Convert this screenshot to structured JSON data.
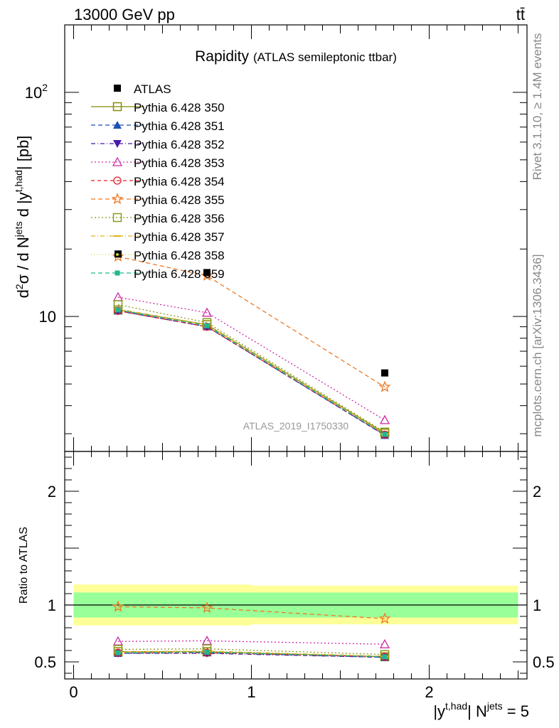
{
  "header": {
    "energy_label": "13000 GeV pp",
    "process_label": "tt̄"
  },
  "side_labels": {
    "rivet": "Rivet 3.1.10, ≥ 1.4M events",
    "mcplots": "mcplots.cern.ch [arXiv:1306.3436]"
  },
  "analysis_id": "ATLAS_2019_I1750330",
  "chart_data": [
    {
      "type": "line",
      "panel": "main",
      "title": "Rapidity",
      "subtitle": "(ATLAS semileptonic ttbar)",
      "ylabel": "d²σ / d N^jets d |y^t,had| [pb]",
      "yscale": "log",
      "ylim": [
        2.5,
        200
      ],
      "xlim": [
        -0.05,
        2.55
      ],
      "grid": false,
      "legend_position": "top-left",
      "ytick_labels": [
        "10",
        "10²"
      ],
      "x": [
        0.25,
        0.75,
        1.75
      ],
      "data": {
        "name": "ATLAS",
        "values": [
          19.0,
          15.7,
          5.6
        ],
        "band_edges": [
          0,
          0.5,
          1.0,
          2.5
        ],
        "stat_band": [
          0.11,
          0.11,
          0.11
        ],
        "total_band": [
          0.18,
          0.18,
          0.17
        ]
      },
      "series": [
        {
          "name": "Pythia 6.428 350",
          "color": "#888a00",
          "dash": "",
          "marker": "square-open",
          "values": [
            10.7,
            9.2,
            3.02
          ]
        },
        {
          "name": "Pythia 6.428 351",
          "color": "#1f4fb4",
          "dash": "6,4",
          "marker": "triangle-up",
          "values": [
            10.6,
            9.0,
            2.95
          ]
        },
        {
          "name": "Pythia 6.428 352",
          "color": "#4a1aa8",
          "dash": "6,3,1,3",
          "marker": "triangle-down",
          "values": [
            10.6,
            9.0,
            2.96
          ]
        },
        {
          "name": "Pythia 6.428 353",
          "color": "#cc2aa6",
          "dash": "2,3",
          "marker": "triangle-open",
          "values": [
            12.2,
            10.4,
            3.45
          ]
        },
        {
          "name": "Pythia 6.428 354",
          "color": "#e0202a",
          "dash": "5,4",
          "marker": "circle-open",
          "values": [
            10.6,
            9.0,
            2.97
          ]
        },
        {
          "name": "Pythia 6.428 355",
          "color": "#f07820",
          "dash": "6,4",
          "marker": "star-open",
          "values": [
            18.5,
            15.2,
            4.85
          ]
        },
        {
          "name": "Pythia 6.428 356",
          "color": "#8a9a1a",
          "dash": "2,3",
          "marker": "square-open",
          "values": [
            11.3,
            9.4,
            3.05
          ]
        },
        {
          "name": "Pythia 6.428 357",
          "color": "#e0b020",
          "dash": "6,3,1,3",
          "marker": "dash",
          "values": [
            10.8,
            9.2,
            3.0
          ]
        },
        {
          "name": "Pythia 6.428 358",
          "color": "#c8d440",
          "dash": "1,3",
          "marker": "dot",
          "values": [
            10.7,
            9.1,
            2.98
          ]
        },
        {
          "name": "Pythia 6.428 359",
          "color": "#20b890",
          "dash": "6,4",
          "marker": "square-filled",
          "values": [
            10.7,
            9.1,
            2.98
          ]
        }
      ]
    },
    {
      "type": "line",
      "panel": "ratio",
      "ylabel": "Ratio to ATLAS",
      "xlabel": "|y^t,had| N^jets = 5",
      "ylim": [
        0.35,
        2.35
      ],
      "ytick_labels": [
        "0.5",
        "1",
        "2"
      ],
      "xtick_labels": [
        "0",
        "1",
        "2"
      ],
      "x": [
        0.25,
        0.75,
        1.75
      ],
      "series": [
        {
          "name": "Pythia 6.428 350",
          "values": [
            0.59,
            0.59,
            0.545
          ]
        },
        {
          "name": "Pythia 6.428 351",
          "values": [
            0.575,
            0.58,
            0.54
          ]
        },
        {
          "name": "Pythia 6.428 352",
          "values": [
            0.575,
            0.575,
            0.54
          ]
        },
        {
          "name": "Pythia 6.428 353",
          "values": [
            0.68,
            0.685,
            0.655
          ]
        },
        {
          "name": "Pythia 6.428 354",
          "values": [
            0.58,
            0.58,
            0.545
          ]
        },
        {
          "name": "Pythia 6.428 355",
          "values": [
            0.985,
            0.975,
            0.88
          ]
        },
        {
          "name": "Pythia 6.428 356",
          "values": [
            0.61,
            0.615,
            0.565
          ]
        },
        {
          "name": "Pythia 6.428 357",
          "values": [
            0.59,
            0.595,
            0.55
          ]
        },
        {
          "name": "Pythia 6.428 358",
          "values": [
            0.585,
            0.59,
            0.55
          ]
        },
        {
          "name": "Pythia 6.428 359",
          "values": [
            0.58,
            0.585,
            0.545
          ]
        }
      ]
    }
  ]
}
